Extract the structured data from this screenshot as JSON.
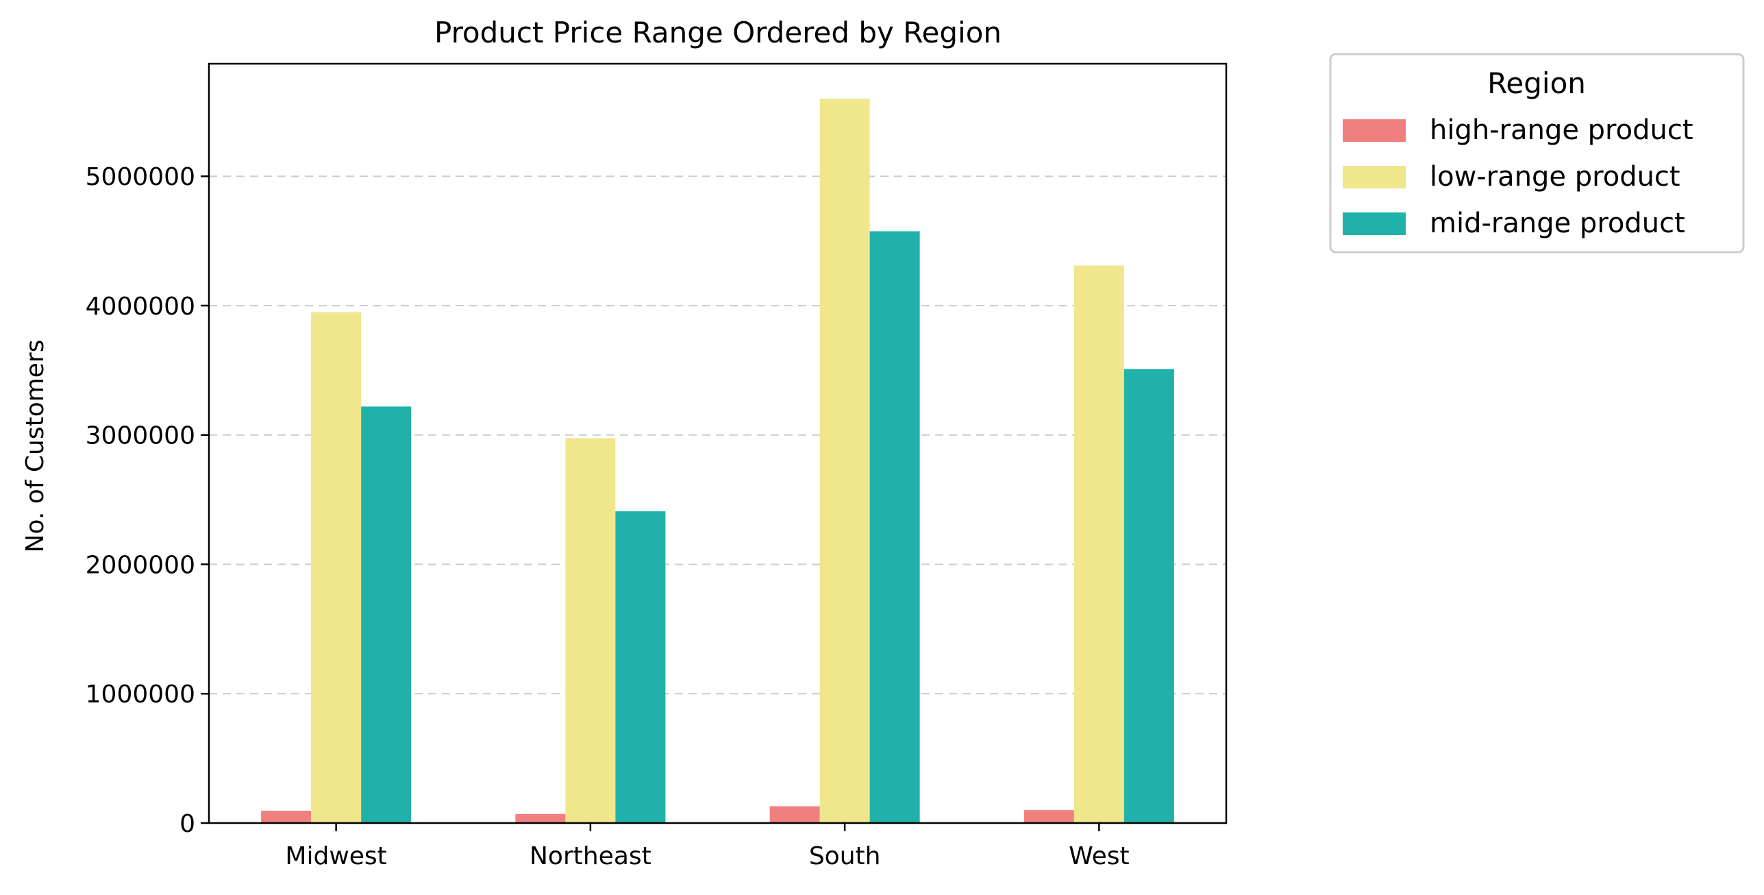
{
  "chart_data": {
    "type": "bar",
    "title": "Product Price Range Ordered by Region",
    "xlabel": "",
    "ylabel": "No. of Customers",
    "categories": [
      "Midwest",
      "Northeast",
      "South",
      "West"
    ],
    "series": [
      {
        "name": "high-range product",
        "color": "#f08080",
        "values": [
          95000,
          70000,
          130000,
          100000
        ]
      },
      {
        "name": "low-range product",
        "color": "#f0e68c",
        "values": [
          3950000,
          2975000,
          5600000,
          4310000
        ]
      },
      {
        "name": "mid-range product",
        "color": "#20b2aa",
        "values": [
          3220000,
          2410000,
          4575000,
          3510000
        ]
      }
    ],
    "ylim": [
      0,
      5870000
    ],
    "yticks": [
      0,
      1000000,
      2000000,
      3000000,
      4000000,
      5000000
    ],
    "ytick_labels": [
      "0",
      "1000000",
      "2000000",
      "3000000",
      "4000000",
      "5000000"
    ],
    "grid": "y-dashed",
    "legend": {
      "title": "Region",
      "placement": "outside-top-right"
    }
  }
}
